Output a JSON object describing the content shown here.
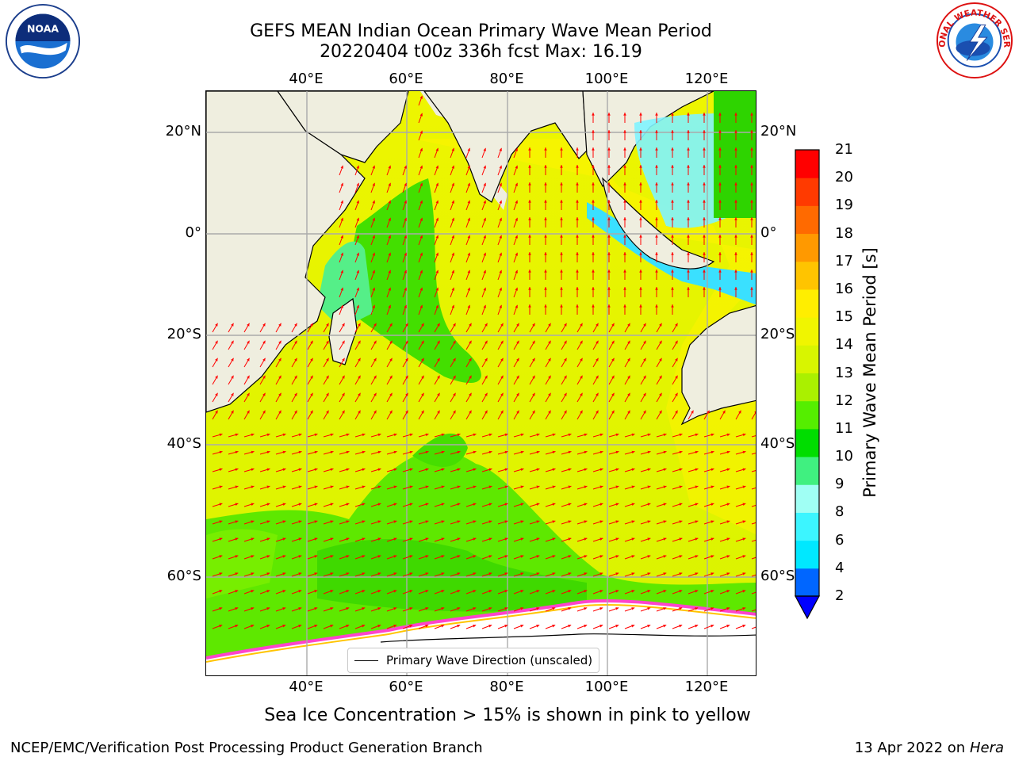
{
  "title_line1": "GEFS MEAN Indian Ocean Primary Wave Mean Period",
  "title_line2": "20220404 t00z 336h fcst   Max: 16.19",
  "axes": {
    "lon_ticks": [
      "40°E",
      "60°E",
      "80°E",
      "100°E",
      "120°E"
    ],
    "lat_ticks": [
      "20°N",
      "0°",
      "20°S",
      "40°S",
      "60°S"
    ]
  },
  "legend_label": "Primary Wave Direction (unscaled)",
  "caption": "Sea Ice Concentration > 15% is shown in pink to yellow",
  "colorbar": {
    "label": "Primary Wave Mean Period [s]",
    "ticks": [
      "2",
      "4",
      "6",
      "8",
      "9",
      "10",
      "11",
      "12",
      "13",
      "14",
      "15",
      "16",
      "17",
      "18",
      "19",
      "20",
      "21"
    ],
    "colors": [
      "#0066ff",
      "#00e8ff",
      "#3cf5ff",
      "#a0fff4",
      "#40f080",
      "#00dd00",
      "#55ee00",
      "#aaf000",
      "#d8f500",
      "#f0f500",
      "#ffee00",
      "#ffc400",
      "#ff9900",
      "#ff6a00",
      "#ff3a00",
      "#ff0000"
    ],
    "extend_color": "#0000ff"
  },
  "footer_left": "NCEP/EMC/Verification Post Processing Product Generation Branch",
  "footer_right_prefix": "13 Apr 2022 on ",
  "footer_right_host": "Hera",
  "logos": {
    "left": "NOAA",
    "right": "NATIONAL WEATHER SERVICE"
  },
  "colors": {
    "land": "#efeedf",
    "sea_ice": "#ff44cc",
    "arrow": "#ff0000",
    "grid": "#aaaaaa"
  }
}
